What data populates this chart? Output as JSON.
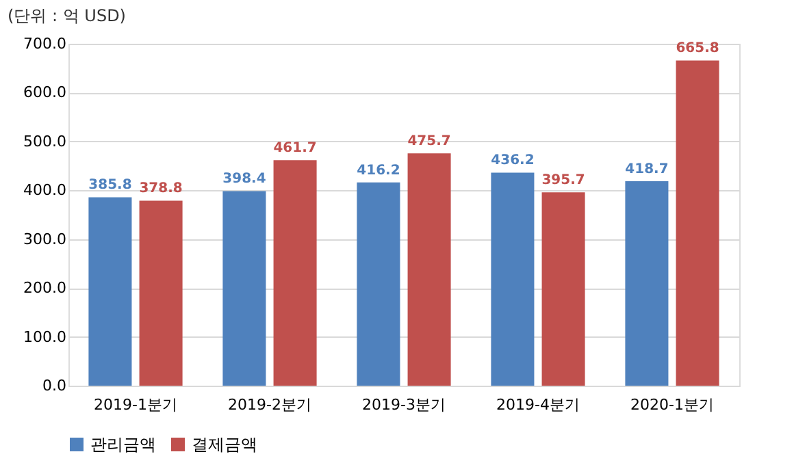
{
  "chart_data": {
    "type": "bar",
    "ylabel": "(단위 : 억 USD)",
    "categories": [
      "2019-1분기",
      "2019-2분기",
      "2019-3분기",
      "2019-4분기",
      "2020-1분기"
    ],
    "series": [
      {
        "name": "관리금액",
        "color": "#4f81bd",
        "values": [
          385.8,
          398.4,
          416.2,
          436.2,
          418.7
        ]
      },
      {
        "name": "결제금액",
        "color": "#c0504d",
        "values": [
          378.8,
          461.7,
          475.7,
          395.7,
          665.8
        ]
      }
    ],
    "ylim": [
      0,
      700
    ],
    "yticks": [
      {
        "value": 0,
        "label": "0.0"
      },
      {
        "value": 100,
        "label": "100.0"
      },
      {
        "value": 200,
        "label": "200.0"
      },
      {
        "value": 300,
        "label": "300.0"
      },
      {
        "value": 400,
        "label": "400.0"
      },
      {
        "value": 500,
        "label": "500.0"
      },
      {
        "value": 600,
        "label": "600.0"
      },
      {
        "value": 700,
        "label": "700.0"
      }
    ],
    "grid": "y",
    "legend": "bottom",
    "data_labels": true
  }
}
